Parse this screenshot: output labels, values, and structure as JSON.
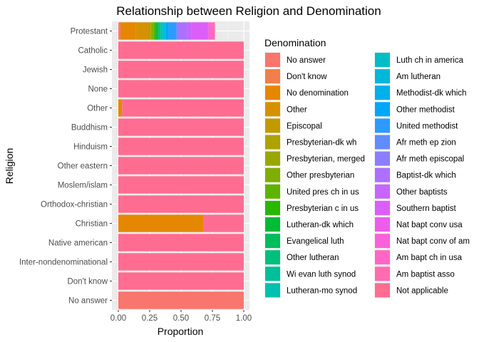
{
  "chart_data": {
    "type": "bar",
    "orientation": "horizontal",
    "stacked": true,
    "title": "Relationship between Religion and Denomination",
    "xlabel": "Proportion",
    "ylabel": "Religion",
    "xlim": [
      0,
      1
    ],
    "xticks": [
      "0.00",
      "0.25",
      "0.50",
      "0.75",
      "1.00"
    ],
    "grid": true,
    "legend_position": "right",
    "legend_title": "Denomination",
    "categories": [
      "Protestant",
      "Catholic",
      "Jewish",
      "None",
      "Other",
      "Buddhism",
      "Hinduism",
      "Other eastern",
      "Moslem/islam",
      "Orthodox-christian",
      "Christian",
      "Native american",
      "Inter-nondenominational",
      "Don't know",
      "No answer"
    ],
    "series": [
      {
        "name": "No answer",
        "color": "#F8766D",
        "values": [
          0.01,
          0,
          0,
          0,
          0,
          0,
          0,
          0,
          0,
          0,
          0,
          0,
          0,
          0,
          1.0
        ]
      },
      {
        "name": "Don't know",
        "color": "#F07F4C",
        "values": [
          0.01,
          0,
          0,
          0,
          0,
          0,
          0,
          0,
          0,
          0,
          0,
          0,
          0,
          0,
          0
        ]
      },
      {
        "name": "No denomination",
        "color": "#E58700",
        "values": [
          0.12,
          0,
          0,
          0,
          0.03,
          0,
          0,
          0,
          0,
          0,
          0.68,
          0,
          0,
          0,
          0
        ]
      },
      {
        "name": "Other",
        "color": "#D59100",
        "values": [
          0.09,
          0,
          0,
          0,
          0,
          0,
          0,
          0,
          0,
          0,
          0,
          0,
          0,
          0,
          0
        ]
      },
      {
        "name": "Episcopal",
        "color": "#C29A00",
        "values": [
          0.02,
          0,
          0,
          0,
          0,
          0,
          0,
          0,
          0,
          0,
          0,
          0,
          0,
          0,
          0
        ]
      },
      {
        "name": "Presbyterian-dk wh",
        "color": "#AFA100",
        "values": [
          0.01,
          0,
          0,
          0,
          0,
          0,
          0,
          0,
          0,
          0,
          0,
          0,
          0,
          0,
          0
        ]
      },
      {
        "name": "Presbyterian, merged",
        "color": "#99A800",
        "values": [
          0.01,
          0,
          0,
          0,
          0,
          0,
          0,
          0,
          0,
          0,
          0,
          0,
          0,
          0,
          0
        ]
      },
      {
        "name": "Other presbyterian",
        "color": "#7FAE00",
        "values": [
          0.01,
          0,
          0,
          0,
          0,
          0,
          0,
          0,
          0,
          0,
          0,
          0,
          0,
          0,
          0
        ]
      },
      {
        "name": "United pres ch in us",
        "color": "#5FB300",
        "values": [
          0.01,
          0,
          0,
          0,
          0,
          0,
          0,
          0,
          0,
          0,
          0,
          0,
          0,
          0,
          0
        ]
      },
      {
        "name": "Presbyterian c in us",
        "color": "#2BB700",
        "values": [
          0.01,
          0,
          0,
          0,
          0,
          0,
          0,
          0,
          0,
          0,
          0,
          0,
          0,
          0,
          0
        ]
      },
      {
        "name": "Lutheran-dk which",
        "color": "#00BA38",
        "values": [
          0.01,
          0,
          0,
          0,
          0,
          0,
          0,
          0,
          0,
          0,
          0,
          0,
          0,
          0,
          0
        ]
      },
      {
        "name": "Evangelical luth",
        "color": "#00BD5C",
        "values": [
          0.01,
          0,
          0,
          0,
          0,
          0,
          0,
          0,
          0,
          0,
          0,
          0,
          0,
          0,
          0
        ]
      },
      {
        "name": "Other lutheran",
        "color": "#00BF7D",
        "values": [
          0.01,
          0,
          0,
          0,
          0,
          0,
          0,
          0,
          0,
          0,
          0,
          0,
          0,
          0,
          0
        ]
      },
      {
        "name": "Wi evan luth synod",
        "color": "#00C097",
        "values": [
          0.01,
          0,
          0,
          0,
          0,
          0,
          0,
          0,
          0,
          0,
          0,
          0,
          0,
          0,
          0
        ]
      },
      {
        "name": "Lutheran-mo synod",
        "color": "#00C0B0",
        "values": [
          0.01,
          0,
          0,
          0,
          0,
          0,
          0,
          0,
          0,
          0,
          0,
          0,
          0,
          0,
          0
        ]
      },
      {
        "name": "Luth ch in america",
        "color": "#00BDC6",
        "values": [
          0.01,
          0,
          0,
          0,
          0,
          0,
          0,
          0,
          0,
          0,
          0,
          0,
          0,
          0,
          0
        ]
      },
      {
        "name": "Am lutheran",
        "color": "#00B8DA",
        "values": [
          0.01,
          0,
          0,
          0,
          0,
          0,
          0,
          0,
          0,
          0,
          0,
          0,
          0,
          0,
          0
        ]
      },
      {
        "name": "Methodist-dk which",
        "color": "#00B0EB",
        "values": [
          0.01,
          0,
          0,
          0,
          0,
          0,
          0,
          0,
          0,
          0,
          0,
          0,
          0,
          0,
          0
        ]
      },
      {
        "name": "Other methodist",
        "color": "#00A6F8",
        "values": [
          0.02,
          0,
          0,
          0,
          0,
          0,
          0,
          0,
          0,
          0,
          0,
          0,
          0,
          0,
          0
        ]
      },
      {
        "name": "United methodist",
        "color": "#2C9AFF",
        "values": [
          0.06,
          0,
          0,
          0,
          0,
          0,
          0,
          0,
          0,
          0,
          0,
          0,
          0,
          0,
          0
        ]
      },
      {
        "name": "Afr meth ep zion",
        "color": "#618CFF",
        "values": [
          0.01,
          0,
          0,
          0,
          0,
          0,
          0,
          0,
          0,
          0,
          0,
          0,
          0,
          0,
          0
        ]
      },
      {
        "name": "Afr meth episcopal",
        "color": "#8B7EFF",
        "values": [
          0.01,
          0,
          0,
          0,
          0,
          0,
          0,
          0,
          0,
          0,
          0,
          0,
          0,
          0,
          0
        ]
      },
      {
        "name": "Baptist-dk which",
        "color": "#AC70FF",
        "values": [
          0.07,
          0,
          0,
          0,
          0,
          0,
          0,
          0,
          0,
          0,
          0,
          0,
          0,
          0,
          0
        ]
      },
      {
        "name": "Other baptists",
        "color": "#C665FF",
        "values": [
          0.03,
          0,
          0,
          0,
          0,
          0,
          0,
          0,
          0,
          0,
          0,
          0,
          0,
          0,
          0
        ]
      },
      {
        "name": "Southern baptist",
        "color": "#DC5EF9",
        "values": [
          0.13,
          0,
          0,
          0,
          0,
          0,
          0,
          0,
          0,
          0,
          0,
          0,
          0,
          0,
          0
        ]
      },
      {
        "name": "Nat bapt conv usa",
        "color": "#EC5DEB",
        "values": [
          0.01,
          0,
          0,
          0,
          0,
          0,
          0,
          0,
          0,
          0,
          0,
          0,
          0,
          0,
          0
        ]
      },
      {
        "name": "Nat bapt conv of am",
        "color": "#F962DA",
        "values": [
          0.01,
          0,
          0,
          0,
          0,
          0,
          0,
          0,
          0,
          0,
          0,
          0,
          0,
          0,
          0
        ]
      },
      {
        "name": "Am bapt ch in usa",
        "color": "#FF67C6",
        "values": [
          0.02,
          0,
          0,
          0,
          0,
          0,
          0,
          0,
          0,
          0,
          0,
          0,
          0,
          0,
          0
        ]
      },
      {
        "name": "Am baptist asso",
        "color": "#FF6DAE",
        "values": [
          0.02,
          0,
          0,
          0,
          0,
          0,
          0,
          0,
          0,
          0,
          0,
          0,
          0,
          0,
          0
        ]
      },
      {
        "name": "Not applicable",
        "color": "#FF6C91",
        "values": [
          0.0,
          1.0,
          1.0,
          1.0,
          0.97,
          1.0,
          1.0,
          1.0,
          1.0,
          1.0,
          0.32,
          1.0,
          1.0,
          1.0,
          0
        ]
      }
    ]
  }
}
